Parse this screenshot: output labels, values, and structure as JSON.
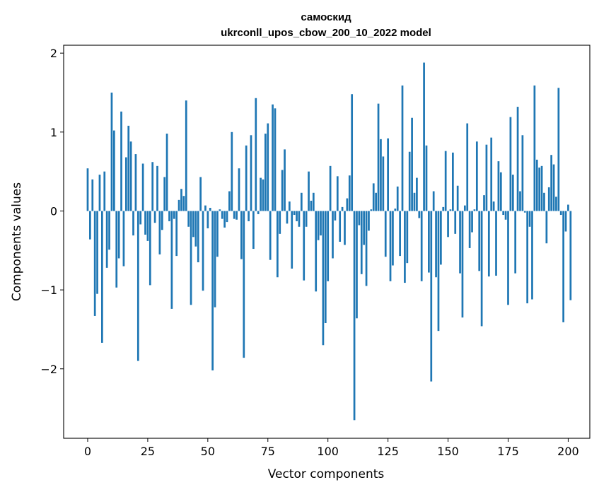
{
  "chart_data": {
    "type": "bar",
    "title_line1": "самоскид",
    "title_line2": "ukrconll_upos_cbow_200_10_2022 model",
    "xlabel": "Vector components",
    "ylabel": "Components values",
    "xlim": [
      -10,
      209
    ],
    "ylim": [
      -2.88,
      2.1
    ],
    "xticks": [
      0,
      25,
      50,
      75,
      100,
      125,
      150,
      175,
      200
    ],
    "yticks": [
      -2,
      -1,
      0,
      1,
      2
    ],
    "ytick_labels": [
      "−2",
      "−1",
      "0",
      "1",
      "2"
    ],
    "bar_color": "#1f77b4",
    "grid": false,
    "values": [
      0.54,
      -0.36,
      0.4,
      -1.33,
      -1.05,
      0.46,
      -1.67,
      0.5,
      -0.72,
      -0.49,
      1.5,
      1.02,
      -0.97,
      -0.6,
      1.26,
      -0.7,
      0.68,
      1.08,
      0.88,
      -0.31,
      0.72,
      -1.9,
      -0.17,
      0.6,
      -0.3,
      -0.38,
      -0.94,
      0.62,
      -0.15,
      0.57,
      -0.55,
      -0.24,
      0.43,
      0.98,
      -0.13,
      -1.24,
      -0.1,
      -0.57,
      0.14,
      0.28,
      0.19,
      1.4,
      -0.2,
      -1.19,
      -0.33,
      -0.45,
      -0.65,
      0.43,
      -1.01,
      0.07,
      -0.22,
      0.04,
      -2.02,
      -1.22,
      -0.58,
      0.02,
      -0.1,
      -0.21,
      -0.14,
      0.25,
      1.0,
      -0.1,
      -0.11,
      0.54,
      -0.61,
      -1.86,
      0.83,
      -0.13,
      0.96,
      -0.48,
      1.43,
      -0.04,
      0.42,
      0.4,
      0.98,
      1.11,
      -0.62,
      1.35,
      1.3,
      -0.84,
      -0.29,
      0.52,
      0.78,
      -0.16,
      0.12,
      -0.73,
      -0.05,
      -0.13,
      -0.2,
      0.23,
      -0.88,
      -0.2,
      0.5,
      0.13,
      0.23,
      -1.02,
      -0.37,
      -0.31,
      -1.7,
      -1.42,
      -0.89,
      0.57,
      -0.6,
      -0.12,
      0.44,
      -0.39,
      0.05,
      -0.43,
      0.16,
      0.45,
      1.48,
      -2.65,
      -1.36,
      -0.18,
      -0.8,
      -0.43,
      -0.95,
      -0.25,
      0.02,
      0.35,
      0.23,
      1.36,
      0.91,
      0.69,
      -0.58,
      0.92,
      -0.89,
      -0.69,
      0.03,
      0.31,
      -0.57,
      1.59,
      -0.91,
      -0.66,
      0.75,
      1.18,
      0.23,
      0.42,
      -0.09,
      -0.89,
      1.88,
      0.83,
      -0.78,
      -2.16,
      0.25,
      -0.84,
      -1.52,
      -0.68,
      0.05,
      0.76,
      -0.33,
      0.02,
      0.74,
      -0.29,
      0.32,
      -0.79,
      -1.35,
      0.07,
      1.11,
      -0.47,
      -0.27,
      0.02,
      0.88,
      -0.76,
      -1.46,
      0.2,
      0.84,
      -0.83,
      0.93,
      0.12,
      -0.82,
      0.63,
      0.49,
      -0.05,
      -0.11,
      -1.19,
      1.19,
      0.46,
      -0.79,
      1.32,
      0.25,
      0.96,
      -0.02,
      -1.17,
      -0.2,
      -1.12,
      1.59,
      0.65,
      0.55,
      0.57,
      0.23,
      -0.41,
      0.3,
      0.71,
      0.59,
      0.18,
      1.56,
      -0.05,
      -1.41,
      -0.26,
      0.08,
      -1.13
    ]
  }
}
